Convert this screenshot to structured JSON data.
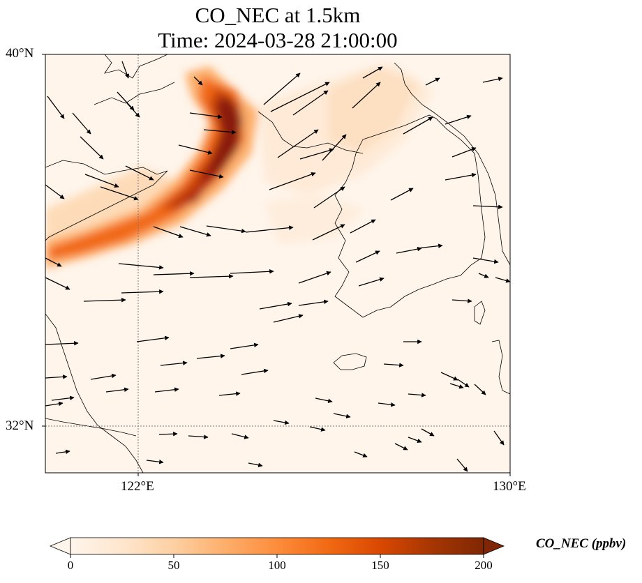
{
  "title": {
    "line1": "CO_NEC at 1.5km",
    "line2": "Time: 2024-03-28 21:00:00"
  },
  "map": {
    "lon_range": [
      119,
      130
    ],
    "lat_range": [
      31,
      40
    ],
    "lat_ticks": [
      {
        "value": 40,
        "label": "40°N"
      },
      {
        "value": 32,
        "label": "32°N"
      }
    ],
    "lon_ticks": [
      {
        "value": 122,
        "label": "122°E"
      },
      {
        "value": 130,
        "label": "130°E"
      }
    ],
    "gridlines": true,
    "background_color": "#fff5eb"
  },
  "colorbar": {
    "label": "CO_NEC (ppbv)",
    "min": 0,
    "max": 200,
    "extend": "both",
    "ticks": [
      {
        "value": 0,
        "label": "0"
      },
      {
        "value": 50,
        "label": "50"
      },
      {
        "value": 100,
        "label": "100"
      },
      {
        "value": 150,
        "label": "150"
      },
      {
        "value": 200,
        "label": "200"
      }
    ],
    "colormap_stops": [
      "#fff5eb",
      "#fee6ce",
      "#fdd0a2",
      "#fdae6b",
      "#fd8d3c",
      "#f16913",
      "#d94801",
      "#a63603",
      "#7f2704"
    ],
    "arrow_color": "#000000"
  }
}
